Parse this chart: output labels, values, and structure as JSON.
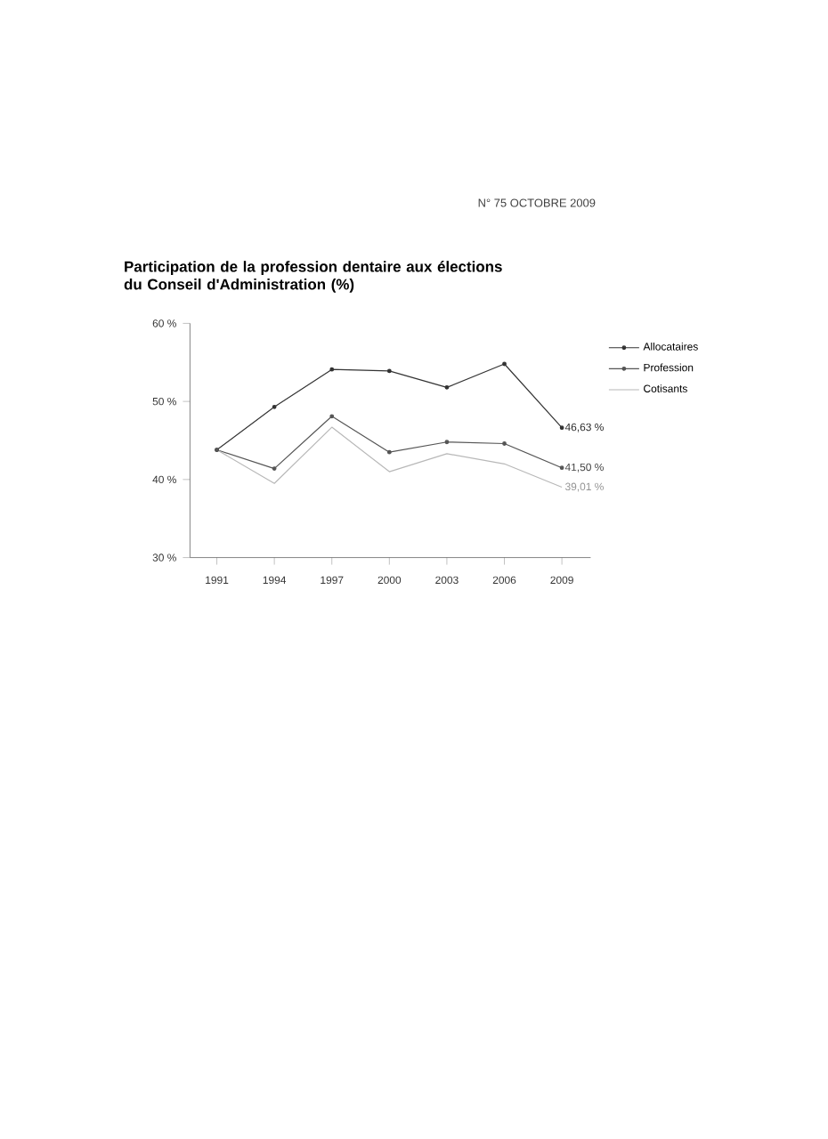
{
  "chart_data": {
    "type": "line",
    "title": "Participation de la profession dentaire aux élections du Conseil d'Administration (%)",
    "annotations": [
      "N° 75 OCTOBRE 2009"
    ],
    "x": [
      1991,
      1994,
      1997,
      2000,
      2003,
      2006,
      2009
    ],
    "xlim": [
      1989.6,
      2010.5
    ],
    "xticks": [
      1991,
      1994,
      1997,
      2000,
      2003,
      2006,
      2009
    ],
    "ylim": [
      30,
      60
    ],
    "yticks": [
      {
        "value": 30,
        "label": "30 %"
      },
      {
        "value": 40,
        "label": "40 %"
      },
      {
        "value": 50,
        "label": "50 %"
      },
      {
        "value": 60,
        "label": "60 %"
      }
    ],
    "legend": "right",
    "grid": false,
    "series": [
      {
        "name": "Allocataires",
        "color": "#333333",
        "marker": "circle",
        "values": [
          43.8,
          49.3,
          54.1,
          53.9,
          51.8,
          54.8,
          46.63
        ],
        "value_labels": [
          null,
          null,
          null,
          null,
          null,
          null,
          "46,63 %"
        ]
      },
      {
        "name": "Profession",
        "color": "#555555",
        "marker": "circle",
        "values": [
          43.8,
          41.4,
          48.1,
          43.5,
          44.8,
          44.6,
          41.5
        ],
        "value_labels": [
          null,
          null,
          null,
          null,
          null,
          null,
          "41,50 %"
        ]
      },
      {
        "name": "Cotisants",
        "color": "#b8b8b8",
        "marker": "none",
        "values": [
          43.8,
          39.5,
          46.7,
          41.0,
          43.3,
          42.0,
          39.01
        ],
        "value_labels": [
          null,
          null,
          null,
          null,
          null,
          null,
          "39,01 %"
        ]
      }
    ]
  }
}
